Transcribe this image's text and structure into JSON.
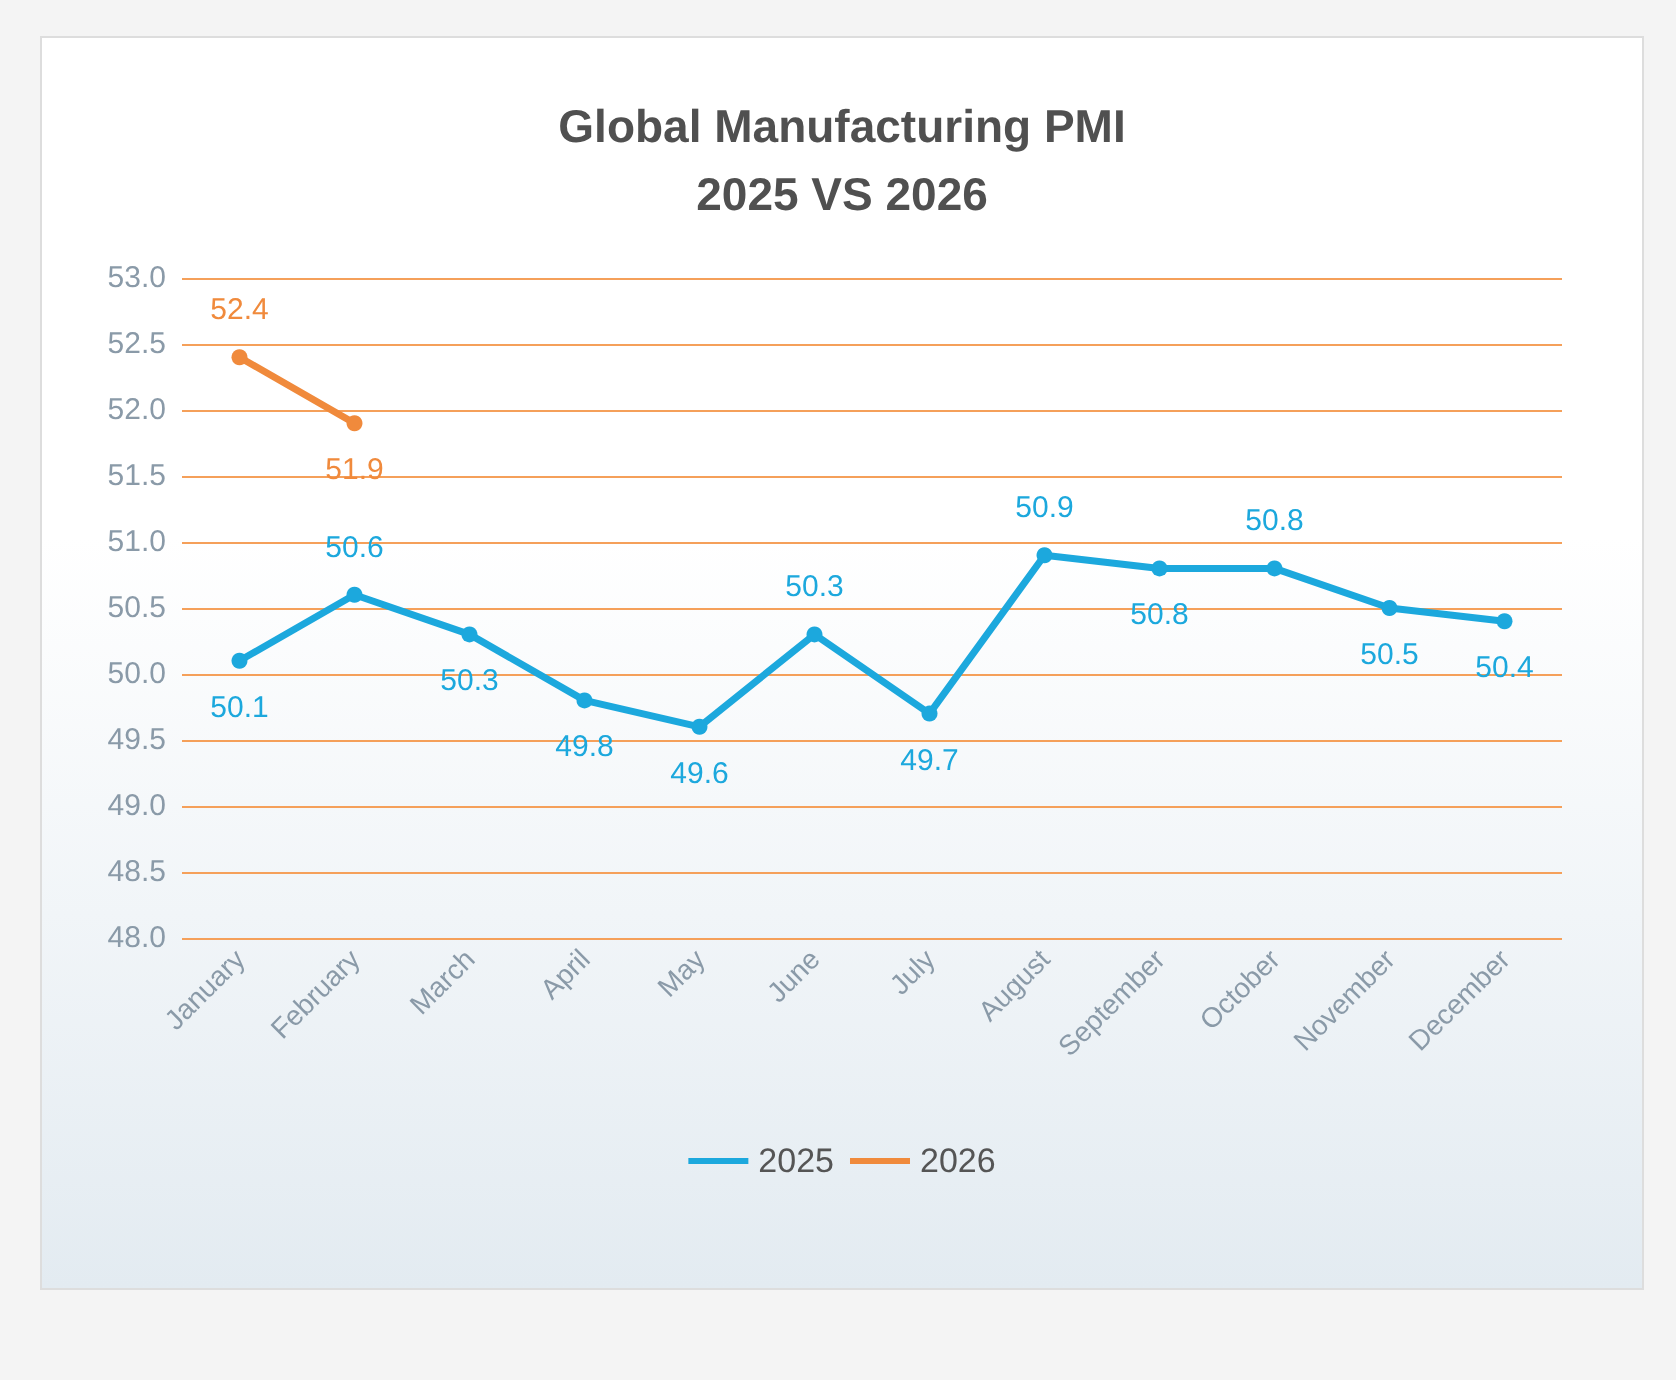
{
  "chart_data": {
    "type": "line",
    "title": "Global Manufacturing PMI\n2025 VS 2026",
    "categories": [
      "January",
      "February",
      "March",
      "April",
      "May",
      "June",
      "July",
      "August",
      "September",
      "October",
      "November",
      "December"
    ],
    "series": [
      {
        "name": "2025",
        "color": "#1ca8dd",
        "values": [
          50.1,
          50.6,
          50.3,
          49.8,
          49.6,
          50.3,
          49.7,
          50.9,
          50.8,
          50.8,
          50.5,
          50.4
        ]
      },
      {
        "name": "2026",
        "color": "#f08a3c",
        "values": [
          52.4,
          51.9,
          null,
          null,
          null,
          null,
          null,
          null,
          null,
          null,
          null,
          null
        ]
      }
    ],
    "ylim": [
      48,
      53
    ],
    "yticks": [
      {
        "value": 48,
        "label": "48.0"
      },
      {
        "value": 48.5,
        "label": "48.5"
      },
      {
        "value": 49,
        "label": "49.0"
      },
      {
        "value": 49.5,
        "label": "49.5"
      },
      {
        "value": 50,
        "label": "50.0"
      },
      {
        "value": 50.5,
        "label": "50.5"
      },
      {
        "value": 51,
        "label": "51.0"
      },
      {
        "value": 51.5,
        "label": "51.5"
      },
      {
        "value": 52,
        "label": "52.0"
      },
      {
        "value": 52.5,
        "label": "52.5"
      },
      {
        "value": 53,
        "label": "53.0"
      }
    ],
    "grid": "y",
    "legend": "bottom",
    "marker": "circle",
    "line_style": "solid",
    "data_labels": true
  }
}
